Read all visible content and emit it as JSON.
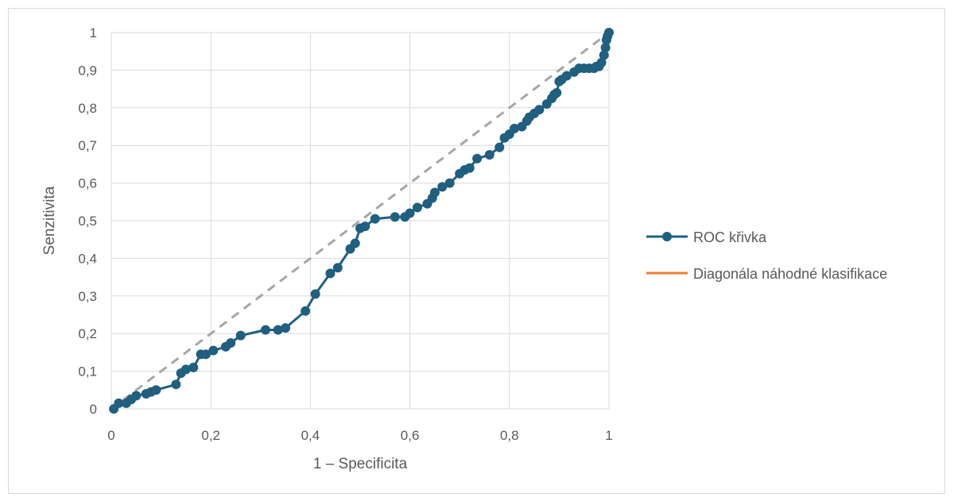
{
  "chart_data": {
    "type": "line",
    "title": "",
    "xlabel": "1 – Specificita",
    "ylabel": "Senzitivita",
    "xlim": [
      0,
      1
    ],
    "ylim": [
      0,
      1
    ],
    "x_ticks": [
      "0",
      "0,2",
      "0,4",
      "0,6",
      "0,8",
      "1"
    ],
    "x_tick_values": [
      0,
      0.2,
      0.4,
      0.6,
      0.8,
      1
    ],
    "y_ticks": [
      "0",
      "0,1",
      "0,2",
      "0,3",
      "0,4",
      "0,5",
      "0,6",
      "0,7",
      "0,8",
      "0,9",
      "1"
    ],
    "y_tick_values": [
      0,
      0.1,
      0.2,
      0.3,
      0.4,
      0.5,
      0.6,
      0.7,
      0.8,
      0.9,
      1
    ],
    "grid": "vertical and horizontal",
    "legend_position": "right",
    "series": [
      {
        "name": "ROC křivka",
        "color": "#1f5f7f",
        "marker": "circle",
        "x": [
          0.005,
          0.015,
          0.03,
          0.04,
          0.05,
          0.07,
          0.08,
          0.09,
          0.13,
          0.14,
          0.15,
          0.165,
          0.18,
          0.19,
          0.205,
          0.23,
          0.24,
          0.26,
          0.31,
          0.335,
          0.35,
          0.39,
          0.41,
          0.44,
          0.455,
          0.48,
          0.49,
          0.5,
          0.51,
          0.53,
          0.57,
          0.59,
          0.6,
          0.615,
          0.635,
          0.645,
          0.65,
          0.665,
          0.68,
          0.7,
          0.71,
          0.72,
          0.735,
          0.76,
          0.78,
          0.79,
          0.8,
          0.81,
          0.825,
          0.835,
          0.84,
          0.85,
          0.86,
          0.875,
          0.885,
          0.89,
          0.895,
          0.9,
          0.905,
          0.915,
          0.93,
          0.94,
          0.95,
          0.96,
          0.97,
          0.975,
          0.98,
          0.985,
          0.99,
          0.993,
          0.995,
          0.997,
          1.0
        ],
        "y": [
          0.0,
          0.015,
          0.015,
          0.025,
          0.035,
          0.04,
          0.045,
          0.05,
          0.065,
          0.095,
          0.105,
          0.11,
          0.145,
          0.145,
          0.155,
          0.165,
          0.175,
          0.195,
          0.21,
          0.21,
          0.215,
          0.26,
          0.305,
          0.36,
          0.375,
          0.425,
          0.44,
          0.48,
          0.485,
          0.505,
          0.51,
          0.51,
          0.52,
          0.535,
          0.545,
          0.56,
          0.575,
          0.59,
          0.6,
          0.625,
          0.635,
          0.64,
          0.665,
          0.675,
          0.695,
          0.72,
          0.73,
          0.745,
          0.75,
          0.765,
          0.775,
          0.785,
          0.795,
          0.81,
          0.825,
          0.835,
          0.84,
          0.87,
          0.875,
          0.885,
          0.895,
          0.905,
          0.905,
          0.905,
          0.905,
          0.91,
          0.91,
          0.92,
          0.94,
          0.96,
          0.98,
          0.99,
          1.0
        ]
      },
      {
        "name": "Diagonála náhodné klasifikace",
        "color": "#ed7d31",
        "legend_only": true,
        "x": [],
        "y": []
      }
    ],
    "reference_line": {
      "from": [
        0,
        0
      ],
      "to": [
        1,
        1
      ],
      "color": "#a6a6a6",
      "style": "dashed"
    }
  }
}
